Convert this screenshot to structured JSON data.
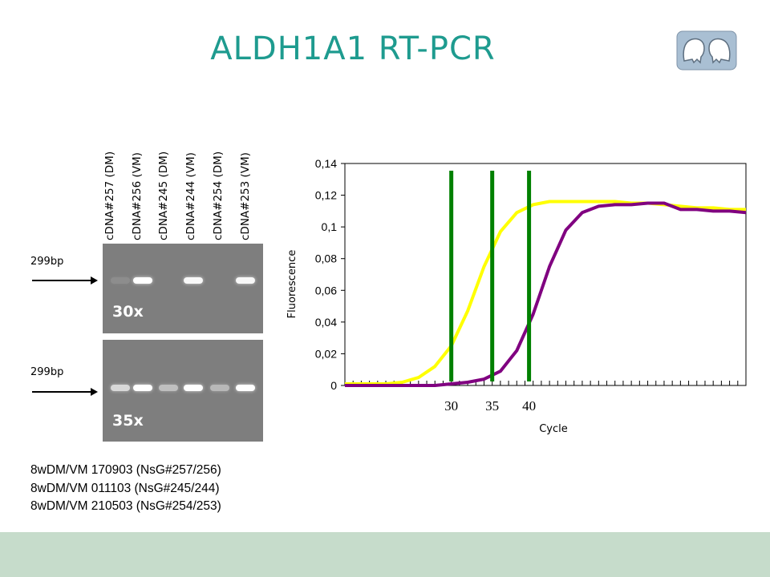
{
  "title": "ALDH1A1 RT-PCR",
  "lanes": [
    "cDNA#257 (DM)",
    "cDNA#256 (VM)",
    "cDNA#245 (DM)",
    "cDNA#244 (VM)",
    "cDNA#254 (DM)",
    "cDNA#253 (VM)"
  ],
  "gels": [
    {
      "cycles": "30x",
      "marker": "299bp",
      "band_intensity": [
        0.12,
        1.0,
        0.0,
        0.95,
        0.0,
        0.95
      ]
    },
    {
      "cycles": "35x",
      "marker": "299bp",
      "band_intensity": [
        0.7,
        1.0,
        0.5,
        1.0,
        0.45,
        1.0
      ]
    }
  ],
  "samples": [
    "8wDM/VM 170903 (NsG#257/256)",
    "8wDM/VM 011103 (NsG#245/244)",
    "8wDM/VM 210503 (NsG#254/253)"
  ],
  "colors": {
    "title": "#1e9b8f",
    "footer": "#c6dccb",
    "gel": "#7e7e7e",
    "yellow": "#ffff00",
    "purple": "#800080",
    "marker": "#008000"
  },
  "chart_data": {
    "type": "line",
    "xlabel": "Cycle",
    "ylabel": "Fluorescence",
    "xlim": [
      1,
      50
    ],
    "ylim": [
      0,
      0.14
    ],
    "yticks": [
      "0",
      "0,02",
      "0,04",
      "0,06",
      "0,08",
      "0,1",
      "0,12",
      "0,14"
    ],
    "series": [
      {
        "color": "#ffff00",
        "x": [
          1,
          6,
          8,
          10,
          12,
          14,
          16,
          18,
          20,
          22,
          24,
          26,
          28,
          30,
          32,
          34,
          36,
          38,
          40,
          42,
          44,
          46,
          48,
          50
        ],
        "y": [
          0.001,
          0.001,
          0.002,
          0.005,
          0.012,
          0.025,
          0.047,
          0.075,
          0.097,
          0.109,
          0.114,
          0.116,
          0.116,
          0.116,
          0.116,
          0.116,
          0.115,
          0.115,
          0.114,
          0.113,
          0.112,
          0.112,
          0.111,
          0.111
        ]
      },
      {
        "color": "#800080",
        "x": [
          1,
          6,
          8,
          10,
          12,
          14,
          16,
          18,
          20,
          22,
          24,
          26,
          28,
          30,
          32,
          34,
          36,
          38,
          40,
          42,
          44,
          46,
          48,
          50
        ],
        "y": [
          0.0,
          0.0,
          0.0,
          0.0,
          0.0,
          0.001,
          0.002,
          0.004,
          0.009,
          0.022,
          0.045,
          0.075,
          0.098,
          0.109,
          0.113,
          0.114,
          0.114,
          0.115,
          0.115,
          0.111,
          0.111,
          0.11,
          0.11,
          0.109
        ]
      }
    ],
    "markers": [
      {
        "x": 14,
        "label": "30"
      },
      {
        "x": 19,
        "label": "35"
      },
      {
        "x": 23.5,
        "label": "40"
      }
    ]
  }
}
